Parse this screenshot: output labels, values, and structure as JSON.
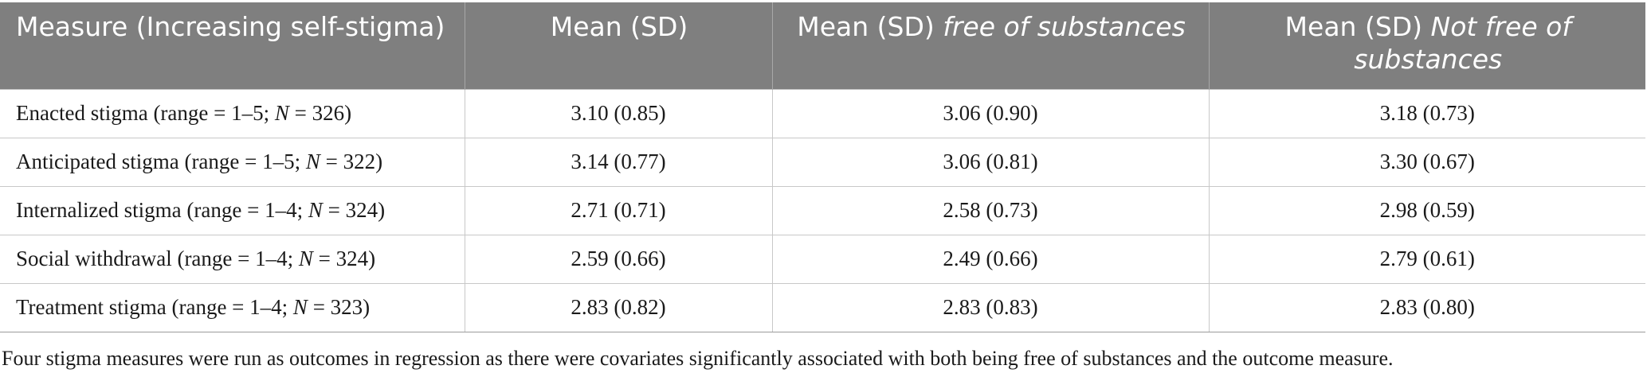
{
  "table": {
    "headers": [
      {
        "pre": "Measure (Increasing self-stigma)",
        "italic": ""
      },
      {
        "pre": "Mean (SD)",
        "italic": ""
      },
      {
        "pre": "Mean (SD) ",
        "italic": "free of substances"
      },
      {
        "pre": "Mean (SD) ",
        "italic": "Not free of substances"
      }
    ],
    "rows": [
      {
        "measure_prefix": "Enacted stigma (range = 1–5; ",
        "n_label": "N",
        "measure_suffix": " = 326)",
        "mean_sd": "3.10 (0.85)",
        "free": "3.06 (0.90)",
        "not_free": "3.18 (0.73)"
      },
      {
        "measure_prefix": "Anticipated stigma (range = 1–5; ",
        "n_label": "N",
        "measure_suffix": " = 322)",
        "mean_sd": "3.14 (0.77)",
        "free": "3.06 (0.81)",
        "not_free": "3.30 (0.67)"
      },
      {
        "measure_prefix": "Internalized stigma (range = 1–4; ",
        "n_label": "N",
        "measure_suffix": " = 324)",
        "mean_sd": "2.71 (0.71)",
        "free": "2.58 (0.73)",
        "not_free": "2.98 (0.59)"
      },
      {
        "measure_prefix": "Social withdrawal (range = 1–4; ",
        "n_label": "N",
        "measure_suffix": " = 324)",
        "mean_sd": "2.59 (0.66)",
        "free": "2.49 (0.66)",
        "not_free": "2.79 (0.61)"
      },
      {
        "measure_prefix": "Treatment stigma (range = 1–4; ",
        "n_label": "N",
        "measure_suffix": " = 323)",
        "mean_sd": "2.83 (0.82)",
        "free": "2.83 (0.83)",
        "not_free": "2.83 (0.80)"
      }
    ]
  },
  "footnote": "Four stigma measures were run as outcomes in regression as there were covariates significantly associated with both being free of substances and the outcome measure."
}
